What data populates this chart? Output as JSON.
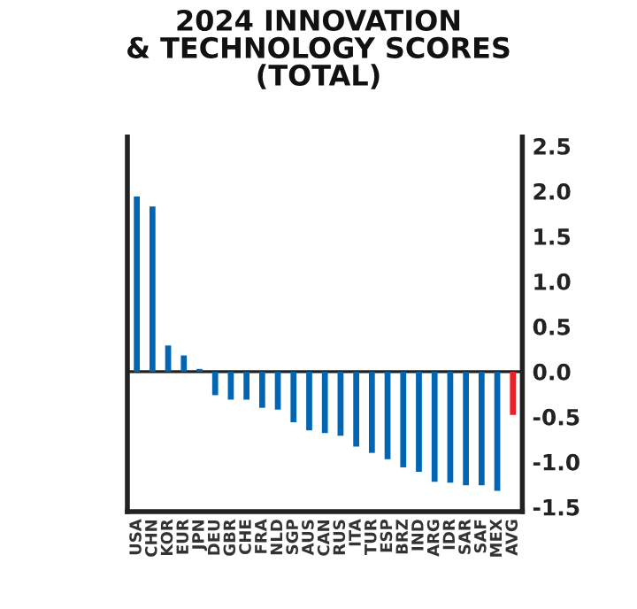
{
  "chart_data": {
    "type": "bar",
    "title": "2024 INNOVATION\n& TECHNOLOGY SCORES\n(TOTAL)",
    "categories": [
      "USA",
      "CHN",
      "KOR",
      "EUR",
      "JPN",
      "DEU",
      "GBR",
      "CHE",
      "FRA",
      "NLD",
      "SGP",
      "AUS",
      "CAN",
      "RUS",
      "ITA",
      "TUR",
      "ESP",
      "BRZ",
      "IND",
      "ARG",
      "IDR",
      "SAR",
      "SAF",
      "MEX",
      "AVG"
    ],
    "values": [
      1.94,
      1.83,
      0.29,
      0.18,
      0.03,
      -0.26,
      -0.31,
      -0.31,
      -0.4,
      -0.42,
      -0.56,
      -0.65,
      -0.68,
      -0.71,
      -0.83,
      -0.9,
      -0.97,
      -1.06,
      -1.11,
      -1.22,
      -1.23,
      -1.26,
      -1.26,
      -1.32,
      -0.48
    ],
    "colors": [
      "#0066b3",
      "#0066b3",
      "#0066b3",
      "#0066b3",
      "#0066b3",
      "#0066b3",
      "#0066b3",
      "#0066b3",
      "#0066b3",
      "#0066b3",
      "#0066b3",
      "#0066b3",
      "#0066b3",
      "#0066b3",
      "#0066b3",
      "#0066b3",
      "#0066b3",
      "#0066b3",
      "#0066b3",
      "#0066b3",
      "#0066b3",
      "#0066b3",
      "#0066b3",
      "#0066b3",
      "#e8202a"
    ],
    "ylim": [
      -1.55,
      2.6
    ],
    "yticks": [
      {
        "value": 2.5,
        "label": "2.5"
      },
      {
        "value": 2.0,
        "label": "2.0"
      },
      {
        "value": 1.5,
        "label": "1.5"
      },
      {
        "value": 1.0,
        "label": "1.0"
      },
      {
        "value": 0.5,
        "label": "0.5"
      },
      {
        "value": 0.0,
        "label": "0.0"
      },
      {
        "value": -0.5,
        "label": "-0.5"
      },
      {
        "value": -1.0,
        "label": "-1.0"
      },
      {
        "value": -1.5,
        "label": "-1.5"
      }
    ],
    "ref_lines": [
      {
        "axis": "y",
        "value": 0,
        "color": "#222222"
      }
    ],
    "grid": false,
    "legend": false
  }
}
